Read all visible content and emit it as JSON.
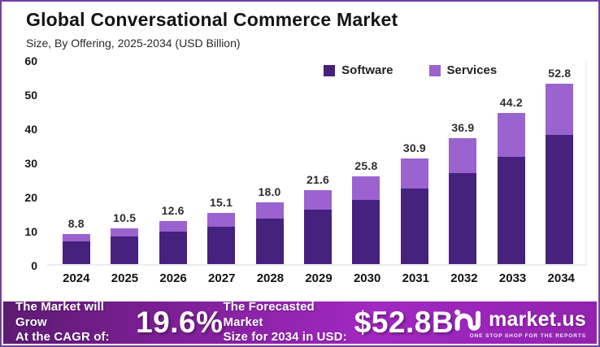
{
  "header": {
    "title": "Global Conversational Commerce Market",
    "subtitle": "Size, By Offering, 2025-2034 (USD Billion)"
  },
  "chart_data": {
    "type": "bar",
    "stacked": true,
    "title": "Global Conversational Commerce Market",
    "subtitle": "Size, By Offering, 2025-2034 (USD Billion)",
    "unit": "USD Billion",
    "categories": [
      "2024",
      "2025",
      "2026",
      "2027",
      "2028",
      "2029",
      "2030",
      "2031",
      "2032",
      "2033",
      "2034"
    ],
    "totals": [
      8.8,
      10.5,
      12.6,
      15.1,
      18.0,
      21.6,
      25.8,
      30.9,
      36.9,
      44.2,
      52.8
    ],
    "total_labels": [
      "8.8",
      "10.5",
      "12.6",
      "15.1",
      "18.0",
      "21.6",
      "25.8",
      "30.9",
      "36.9",
      "44.2",
      "52.8"
    ],
    "series": [
      {
        "name": "Software",
        "color": "#46217e",
        "values": [
          6.7,
          8.1,
          9.5,
          11.0,
          13.4,
          16.0,
          18.7,
          22.2,
          26.6,
          31.5,
          37.8
        ]
      },
      {
        "name": "Services",
        "color": "#9a63cf",
        "values": [
          2.1,
          2.4,
          3.1,
          4.1,
          4.6,
          5.6,
          7.1,
          8.7,
          10.3,
          12.7,
          15.0
        ]
      }
    ],
    "series_values_estimated_from_pixels": true,
    "ylim": [
      0,
      60
    ],
    "yticks": [
      0,
      10,
      20,
      30,
      40,
      50,
      60
    ],
    "grid": false,
    "legend_position": "top-center"
  },
  "footer": {
    "cagr_label": "The Market will Grow\nAt the CAGR of:",
    "cagr_value": "19.6%",
    "forecast_label": "The Forecasted Market\nSize for 2034 in USD:",
    "forecast_value": "$52.8B",
    "brand": {
      "name": "market.us",
      "tagline": "ONE STOP SHOP FOR THE REPORTS"
    }
  },
  "colors": {
    "software": "#46217e",
    "services": "#9a63cf",
    "frame_border": "#7140a6",
    "banner_gradient_start": "#5c1b72",
    "banner_gradient_end": "#9122ae",
    "banner_text": "#ffffff"
  }
}
